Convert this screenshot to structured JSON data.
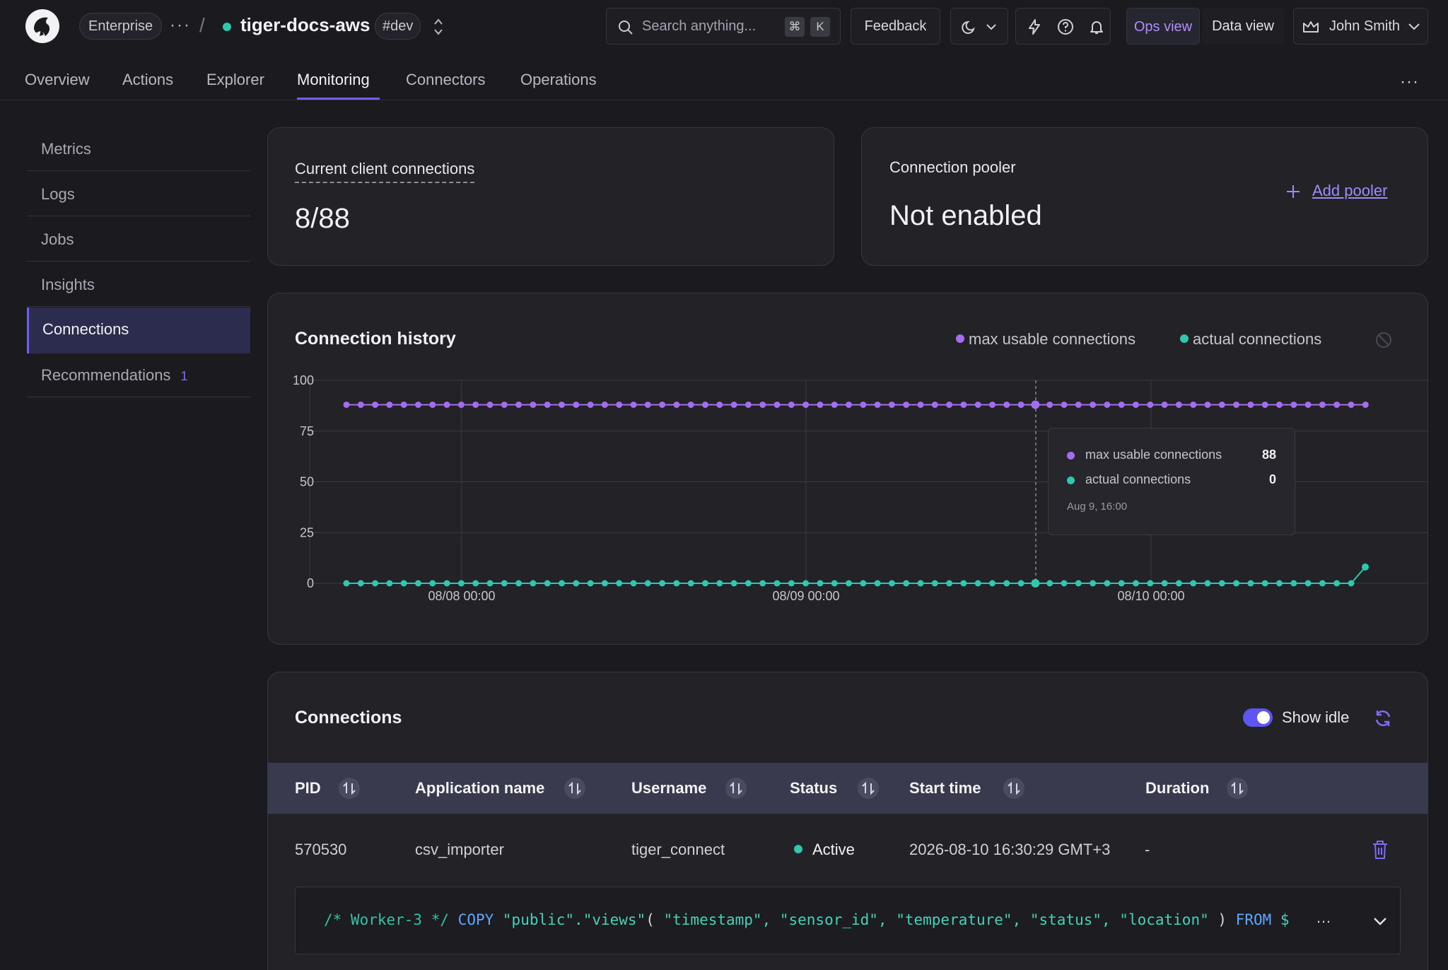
{
  "header": {
    "org": "Enterprise",
    "more": "···",
    "separator": "/",
    "project": "tiger-docs-aws",
    "env_tag": "#dev",
    "search_placeholder": "Search anything...",
    "shortcut_keys": [
      "⌘",
      "K"
    ],
    "feedback": "Feedback",
    "view_ops": "Ops view",
    "view_data": "Data view",
    "user": "John Smith",
    "icons": [
      "logo-icon",
      "theme-moon-icon",
      "bolt-icon",
      "help-icon",
      "bell-icon",
      "crown-icon"
    ],
    "colors": {
      "accent": "#6e5ef5",
      "teal": "#2fc7ad",
      "purple": "#a66cf0"
    }
  },
  "nav": {
    "tabs": [
      "Overview",
      "Actions",
      "Explorer",
      "Monitoring",
      "Connectors",
      "Operations"
    ],
    "active": "Monitoring",
    "more": "···"
  },
  "sidebar": {
    "items": [
      {
        "label": "Metrics"
      },
      {
        "label": "Logs"
      },
      {
        "label": "Jobs"
      },
      {
        "label": "Insights"
      },
      {
        "label": "Connections",
        "active": true
      },
      {
        "label": "Recommendations",
        "badge": "1"
      }
    ]
  },
  "cards": {
    "client_connections": {
      "label": "Current client connections",
      "value": "8/88"
    },
    "pooler": {
      "label": "Connection pooler",
      "value": "Not enabled",
      "action": "Add pooler"
    }
  },
  "history": {
    "title": "Connection history",
    "tooltip": {
      "rows": [
        {
          "label": "max usable connections",
          "value": "88"
        },
        {
          "label": "actual connections",
          "value": "0"
        }
      ],
      "date": "Aug 9, 16:00"
    }
  },
  "chart_data": {
    "type": "line",
    "title": "Connection history",
    "x_ticks": [
      "08/08 00:00",
      "08/09 00:00",
      "08/10 00:00"
    ],
    "y_ticks": [
      0,
      25,
      50,
      75,
      100
    ],
    "ylim": [
      0,
      100
    ],
    "grid": true,
    "legend_position": "top-right",
    "series": [
      {
        "name": "max usable connections",
        "color": "#a66cf0",
        "constant": 88,
        "points": 72
      },
      {
        "name": "actual connections",
        "color": "#2fc7ad",
        "constant": 0,
        "points": 71,
        "last_value": 8
      }
    ]
  },
  "connections": {
    "title": "Connections",
    "show_idle": "Show idle",
    "columns": [
      "PID",
      "Application name",
      "Username",
      "Status",
      "Start time",
      "Duration"
    ],
    "rows": [
      {
        "pid": "570530",
        "app": "csv_importer",
        "user": "tiger_connect",
        "status": "Active",
        "start": "2026-08-10 16:30:29 GMT+3",
        "duration": "-",
        "query_comment": "/* Worker-3 */",
        "query_kw": "COPY",
        "query_table": "\"public\".\"views\"",
        "query_cols": "\"timestamp\", \"sensor_id\", \"temperature\", \"status\", \"location\"",
        "query_from": "FROM",
        "query_tail": "$",
        "query_ellipsis": "…"
      }
    ]
  }
}
